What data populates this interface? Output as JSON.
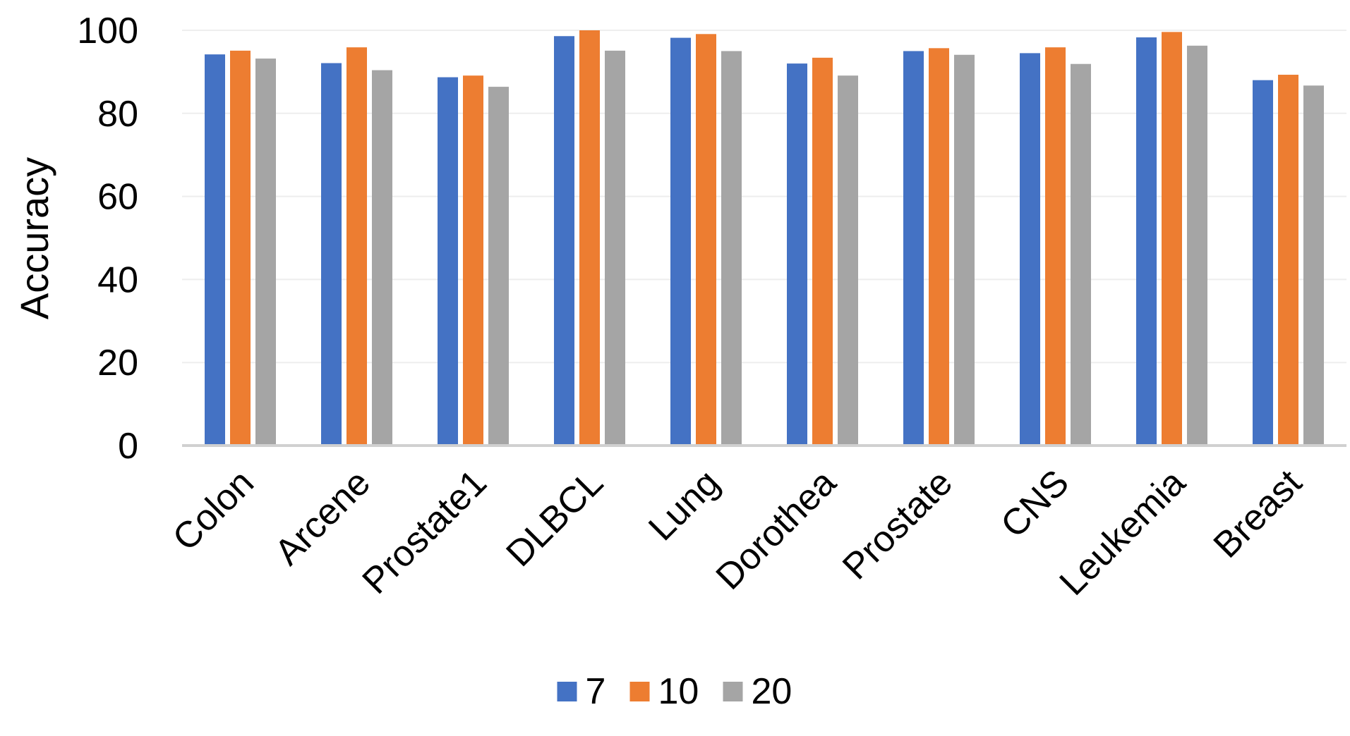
{
  "chart_data": {
    "type": "bar",
    "title": "",
    "xlabel": "",
    "ylabel": "Accuracy",
    "ylim": [
      0,
      100
    ],
    "yticks": [
      0,
      20,
      40,
      60,
      80,
      100
    ],
    "grid": true,
    "legend_position": "bottom",
    "categories": [
      "Colon",
      "Arcene",
      "Prostate1",
      "DLBCL",
      "Lung",
      "Dorothea",
      "Prostate",
      "CNS",
      "Leukemia",
      "Breast"
    ],
    "series": [
      {
        "name": "7",
        "color": "#4472C4",
        "values": [
          94.2,
          92.1,
          88.7,
          98.6,
          98.2,
          92.0,
          95.0,
          94.5,
          98.3,
          88.0
        ]
      },
      {
        "name": "10",
        "color": "#ED7D31",
        "values": [
          95.1,
          95.9,
          89.1,
          100.0,
          99.1,
          93.4,
          95.7,
          95.9,
          99.6,
          89.3
        ]
      },
      {
        "name": "20",
        "color": "#A5A5A5",
        "values": [
          93.2,
          90.4,
          86.4,
          95.1,
          95.0,
          89.1,
          94.1,
          91.9,
          96.3,
          86.7
        ]
      }
    ]
  }
}
